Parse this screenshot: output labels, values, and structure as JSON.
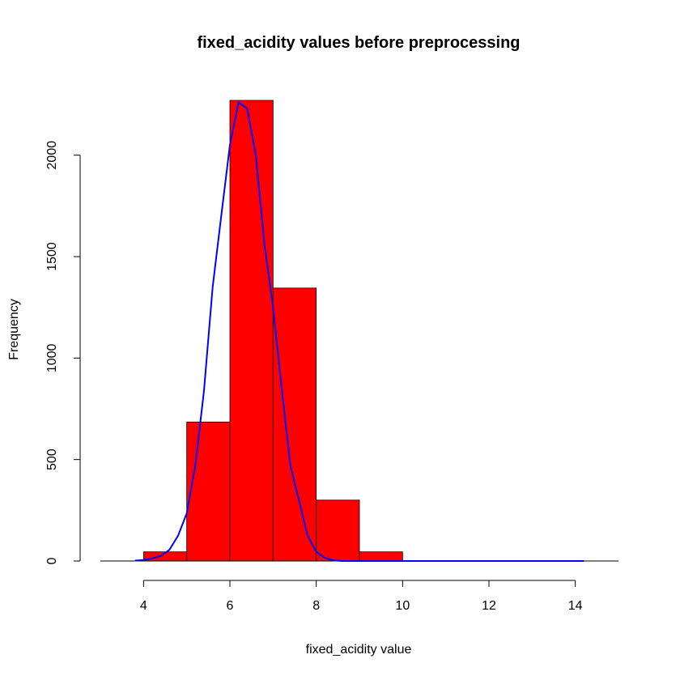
{
  "chart_data": {
    "type": "bar",
    "title": "fixed_acidity values before preprocessing",
    "xlabel": "fixed_acidity value",
    "ylabel": "Frequency",
    "xlim": [
      3,
      15
    ],
    "ylim": [
      0,
      2270
    ],
    "x_ticks": [
      4,
      6,
      8,
      10,
      12,
      14
    ],
    "y_ticks": [
      0,
      500,
      1000,
      1500,
      2000
    ],
    "bins": [
      {
        "start": 4,
        "end": 5,
        "value": 45
      },
      {
        "start": 5,
        "end": 6,
        "value": 685
      },
      {
        "start": 6,
        "end": 7,
        "value": 2270
      },
      {
        "start": 7,
        "end": 8,
        "value": 1345
      },
      {
        "start": 8,
        "end": 9,
        "value": 300
      },
      {
        "start": 9,
        "end": 10,
        "value": 45
      }
    ],
    "bar_color": "#ff0000",
    "bar_border": "#000000",
    "curve": {
      "color": "#0000ff",
      "points": [
        [
          3.8,
          2
        ],
        [
          4.0,
          5
        ],
        [
          4.2,
          12
        ],
        [
          4.4,
          25
        ],
        [
          4.6,
          55
        ],
        [
          4.8,
          125
        ],
        [
          5.0,
          235
        ],
        [
          5.2,
          470
        ],
        [
          5.4,
          840
        ],
        [
          5.6,
          1350
        ],
        [
          5.8,
          1700
        ],
        [
          6.0,
          2050
        ],
        [
          6.2,
          2260
        ],
        [
          6.4,
          2230
        ],
        [
          6.6,
          2000
        ],
        [
          6.8,
          1560
        ],
        [
          7.0,
          1250
        ],
        [
          7.2,
          850
        ],
        [
          7.4,
          470
        ],
        [
          7.6,
          300
        ],
        [
          7.8,
          125
        ],
        [
          8.0,
          45
        ],
        [
          8.2,
          15
        ],
        [
          8.4,
          3
        ],
        [
          8.6,
          0
        ],
        [
          14.2,
          0
        ]
      ]
    }
  }
}
